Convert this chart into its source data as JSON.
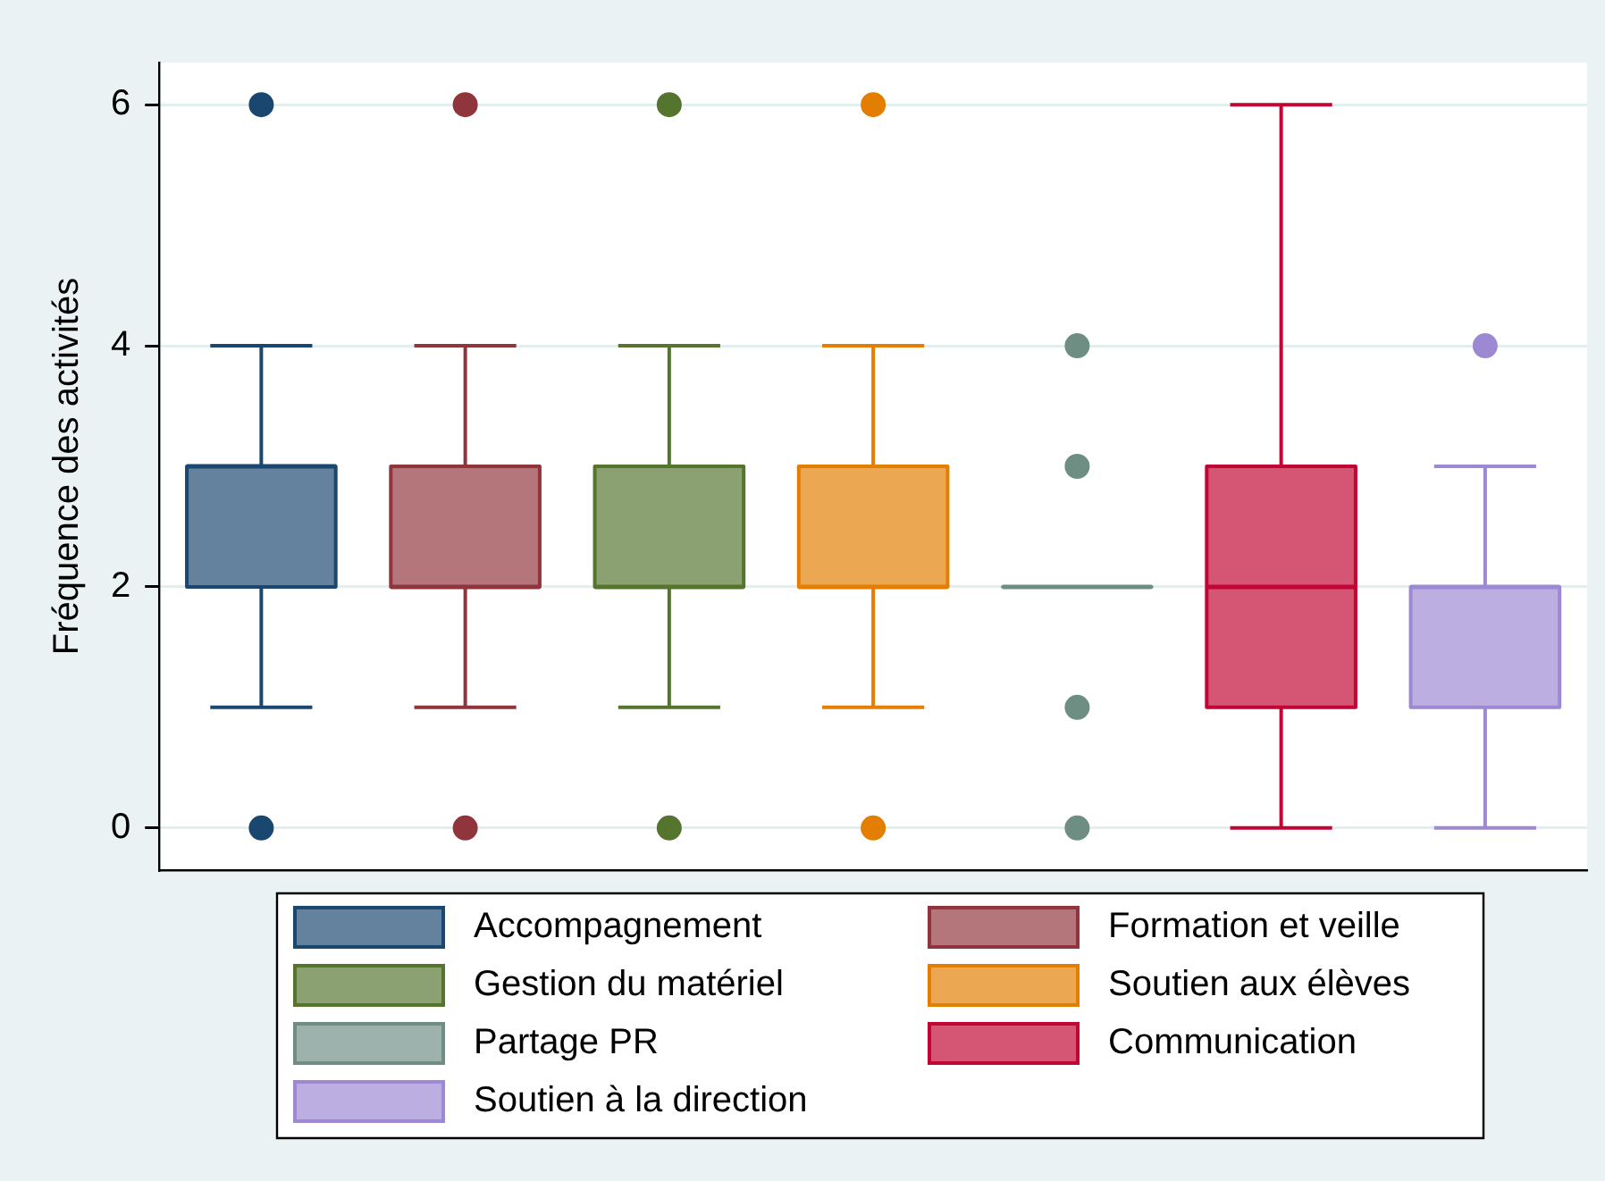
{
  "chart_data": {
    "type": "box",
    "ylabel": "Fréquence des activités",
    "categories": [
      null,
      null,
      null,
      null,
      null,
      null,
      null
    ],
    "series": [
      {
        "name": "Accompagnement",
        "color": "#1a476f",
        "boxes": [
          {
            "low": 1,
            "q1": 2,
            "median": 3,
            "q3": 3,
            "high": 4,
            "outliers": [
              6,
              0
            ]
          },
          null,
          null,
          null,
          null,
          null,
          null
        ]
      },
      {
        "name": "Formation et veille",
        "color": "#90353b",
        "boxes": [
          null,
          {
            "low": 1,
            "q1": 2,
            "median": 2,
            "q3": 3,
            "high": 4,
            "outliers": [
              6,
              0
            ]
          },
          null,
          null,
          null,
          null,
          null
        ]
      },
      {
        "name": "Gestion du matériel",
        "color": "#55752f",
        "boxes": [
          null,
          null,
          {
            "low": 1,
            "q1": 2,
            "median": 2,
            "q3": 3,
            "high": 4,
            "outliers": [
              6,
              0
            ]
          },
          null,
          null,
          null,
          null
        ]
      },
      {
        "name": "Soutien aux élèves",
        "color": "#e37e00",
        "boxes": [
          null,
          null,
          null,
          {
            "low": 1,
            "q1": 2,
            "median": 2,
            "q3": 3,
            "high": 4,
            "outliers": [
              6,
              0
            ]
          },
          null,
          null,
          null
        ]
      },
      {
        "name": "Partage PR",
        "color": "#6e8e84",
        "boxes": [
          null,
          null,
          null,
          null,
          {
            "low": 2,
            "q1": 2,
            "median": 2,
            "q3": 2,
            "high": 2,
            "outliers": [
              4,
              3,
              1,
              0
            ]
          },
          null,
          null
        ]
      },
      {
        "name": "Communication",
        "color": "#c10534",
        "boxes": [
          null,
          null,
          null,
          null,
          null,
          {
            "low": 0,
            "q1": 1,
            "median": 2,
            "q3": 3,
            "high": 6
          },
          null
        ]
      },
      {
        "name": "Soutien à la direction",
        "color": "#9c88d3",
        "boxes": [
          null,
          null,
          null,
          null,
          null,
          null,
          {
            "low": 0,
            "q1": 1,
            "median": 2,
            "q3": 2,
            "high": 3,
            "outliers": [
              4
            ]
          }
        ]
      }
    ],
    "ylim": [
      -0.35,
      6.35
    ],
    "yticks": [
      0,
      2,
      4,
      6
    ],
    "grid": "y",
    "legend": "bottom"
  }
}
